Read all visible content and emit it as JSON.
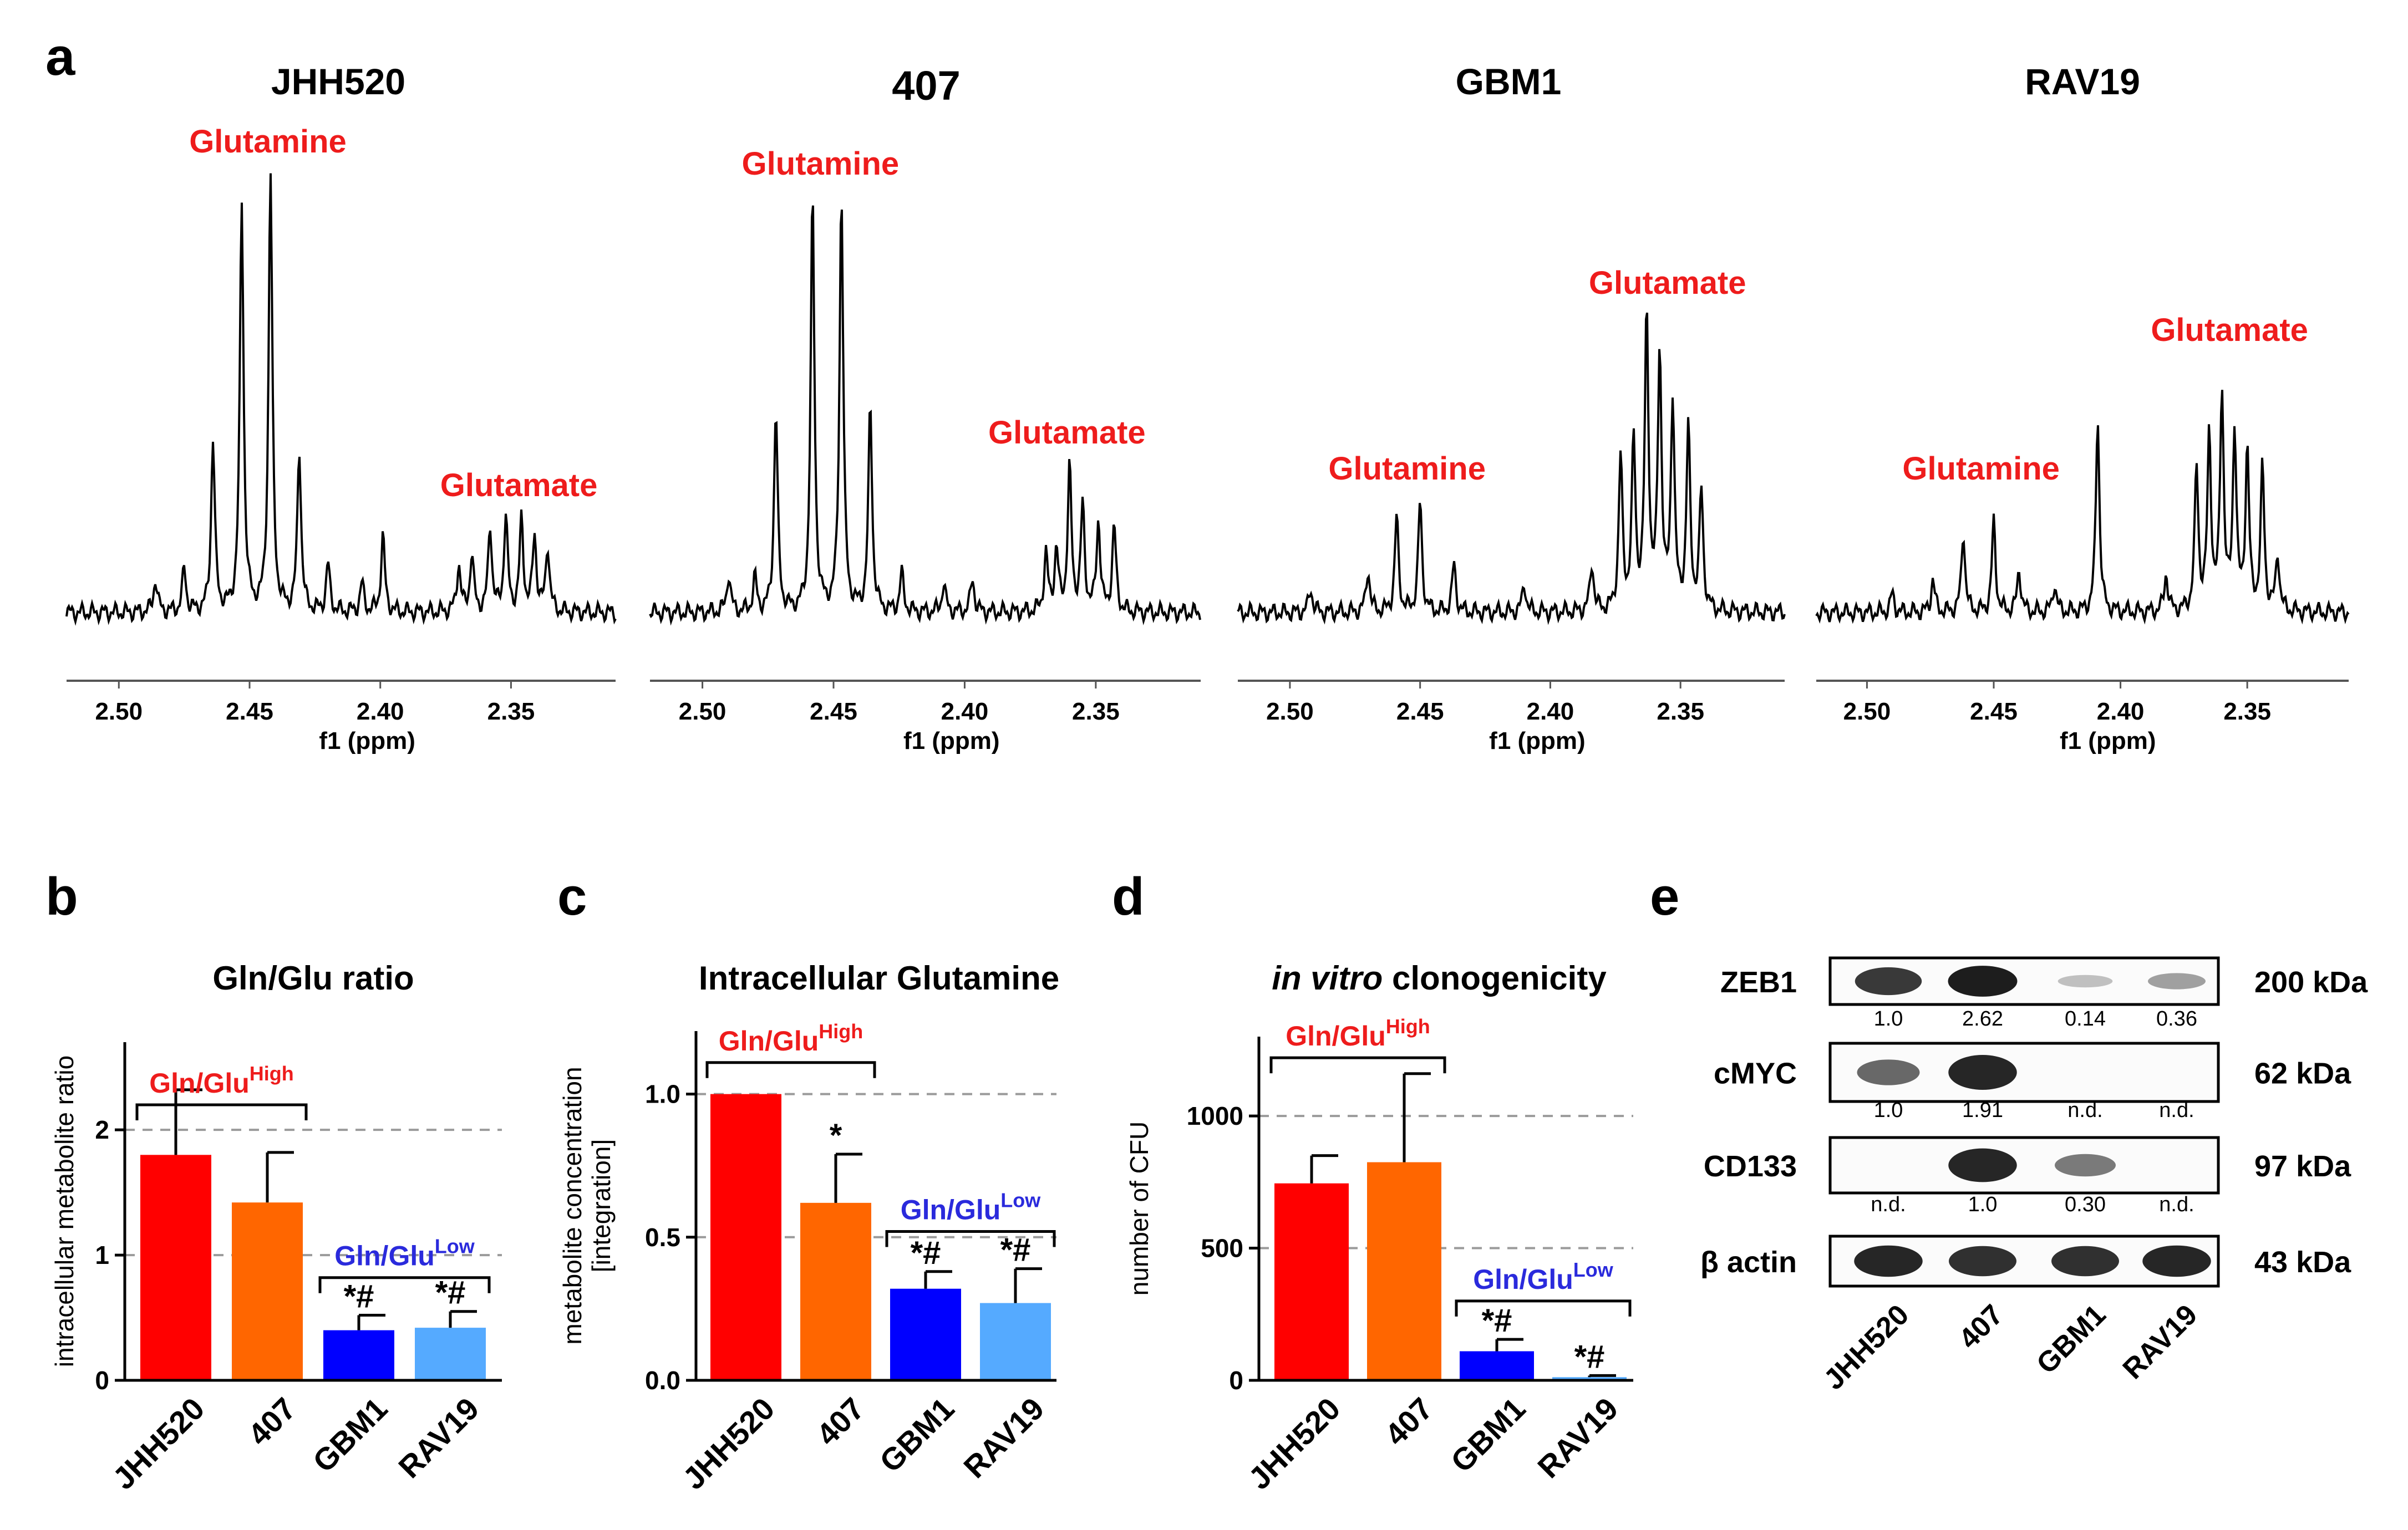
{
  "colors": {
    "red_label": "#ee1c1c",
    "blue_label": "#2a2adc",
    "bar_jhh520": "#ff0000",
    "bar_407": "#ff6600",
    "bar_gbm1": "#0000ff",
    "bar_rav19": "#55aaff",
    "ink": "#000000",
    "gridline": "#9a9a9a"
  },
  "panel_a": {
    "label": "a",
    "xlabel": "f1 (ppm)",
    "ticks": [
      "2.50",
      "2.45",
      "2.40",
      "2.35"
    ],
    "spectra": [
      {
        "cell_line": "JHH520",
        "labels": [
          {
            "text": "Glutamine",
            "ppm": 2.443
          },
          {
            "text": "Glutamate",
            "ppm": 2.347
          }
        ],
        "peaks": [
          {
            "ppm": 2.486,
            "h": 0.07
          },
          {
            "ppm": 2.475,
            "h": 0.09
          },
          {
            "ppm": 2.464,
            "h": 0.36
          },
          {
            "ppm": 2.453,
            "h": 0.86
          },
          {
            "ppm": 2.442,
            "h": 0.92
          },
          {
            "ppm": 2.431,
            "h": 0.34
          },
          {
            "ppm": 2.42,
            "h": 0.1
          },
          {
            "ppm": 2.407,
            "h": 0.06
          },
          {
            "ppm": 2.399,
            "h": 0.16
          },
          {
            "ppm": 2.37,
            "h": 0.1
          },
          {
            "ppm": 2.365,
            "h": 0.12
          },
          {
            "ppm": 2.358,
            "h": 0.18
          },
          {
            "ppm": 2.352,
            "h": 0.2
          },
          {
            "ppm": 2.346,
            "h": 0.19
          },
          {
            "ppm": 2.341,
            "h": 0.16
          },
          {
            "ppm": 2.336,
            "h": 0.14
          }
        ]
      },
      {
        "cell_line": "407",
        "labels": [
          {
            "text": "Glutamine",
            "ppm": 2.455
          },
          {
            "text": "Glutamate",
            "ppm": 2.361
          }
        ],
        "peaks": [
          {
            "ppm": 2.49,
            "h": 0.08
          },
          {
            "ppm": 2.48,
            "h": 0.07
          },
          {
            "ppm": 2.472,
            "h": 0.42
          },
          {
            "ppm": 2.458,
            "h": 0.87
          },
          {
            "ppm": 2.447,
            "h": 0.88
          },
          {
            "ppm": 2.436,
            "h": 0.43
          },
          {
            "ppm": 2.424,
            "h": 0.08
          },
          {
            "ppm": 2.408,
            "h": 0.06
          },
          {
            "ppm": 2.397,
            "h": 0.07
          },
          {
            "ppm": 2.369,
            "h": 0.12
          },
          {
            "ppm": 2.365,
            "h": 0.13
          },
          {
            "ppm": 2.36,
            "h": 0.3
          },
          {
            "ppm": 2.355,
            "h": 0.22
          },
          {
            "ppm": 2.349,
            "h": 0.19
          },
          {
            "ppm": 2.343,
            "h": 0.18
          }
        ]
      },
      {
        "cell_line": "GBM1",
        "labels": [
          {
            "text": "Glutamine",
            "ppm": 2.455
          },
          {
            "text": "Glutamate",
            "ppm": 2.355
          }
        ],
        "peaks": [
          {
            "ppm": 2.492,
            "h": 0.05
          },
          {
            "ppm": 2.47,
            "h": 0.09
          },
          {
            "ppm": 2.459,
            "h": 0.2
          },
          {
            "ppm": 2.45,
            "h": 0.23
          },
          {
            "ppm": 2.437,
            "h": 0.1
          },
          {
            "ppm": 2.41,
            "h": 0.06
          },
          {
            "ppm": 2.384,
            "h": 0.1
          },
          {
            "ppm": 2.373,
            "h": 0.32
          },
          {
            "ppm": 2.368,
            "h": 0.35
          },
          {
            "ppm": 2.363,
            "h": 0.62
          },
          {
            "ppm": 2.358,
            "h": 0.54
          },
          {
            "ppm": 2.353,
            "h": 0.44
          },
          {
            "ppm": 2.347,
            "h": 0.38
          },
          {
            "ppm": 2.342,
            "h": 0.25
          }
        ]
      },
      {
        "cell_line": "RAV19",
        "labels": [
          {
            "text": "Glutamine",
            "ppm": 2.455
          },
          {
            "text": "Glutamate",
            "ppm": 2.357
          }
        ],
        "peaks": [
          {
            "ppm": 2.49,
            "h": 0.04
          },
          {
            "ppm": 2.474,
            "h": 0.07
          },
          {
            "ppm": 2.462,
            "h": 0.17
          },
          {
            "ppm": 2.45,
            "h": 0.19
          },
          {
            "ppm": 2.44,
            "h": 0.09
          },
          {
            "ppm": 2.426,
            "h": 0.06
          },
          {
            "ppm": 2.409,
            "h": 0.41
          },
          {
            "ppm": 2.382,
            "h": 0.08
          },
          {
            "ppm": 2.37,
            "h": 0.3
          },
          {
            "ppm": 2.365,
            "h": 0.37
          },
          {
            "ppm": 2.36,
            "h": 0.46
          },
          {
            "ppm": 2.355,
            "h": 0.38
          },
          {
            "ppm": 2.35,
            "h": 0.34
          },
          {
            "ppm": 2.344,
            "h": 0.3
          },
          {
            "ppm": 2.338,
            "h": 0.12
          }
        ]
      }
    ]
  },
  "chart_data": [
    {
      "panel": "b",
      "type": "bar",
      "title": "Gln/Glu ratio",
      "ylabel": "intracellular metabolite ratio",
      "categories": [
        "JHH520",
        "407",
        "GBM1",
        "RAV19"
      ],
      "values": [
        1.8,
        1.42,
        0.4,
        0.42
      ],
      "errors": [
        0.52,
        0.4,
        0.12,
        0.13
      ],
      "significance": [
        "",
        "",
        "*#",
        "*#"
      ],
      "ylim": [
        0,
        2.7
      ],
      "yticks": [
        0,
        1,
        2
      ],
      "ytick_labels": [
        "0",
        "1",
        "2"
      ],
      "reference_lines": [
        1,
        2
      ],
      "group_high": {
        "text": "Gln/Glu",
        "sup": "High",
        "members": [
          0,
          1
        ],
        "y": 2.2
      },
      "group_low": {
        "text": "Gln/Glu",
        "sup": "Low",
        "members": [
          2,
          3
        ],
        "y": 0.82
      }
    },
    {
      "panel": "c",
      "type": "bar",
      "title": "Intracellular Glutamine",
      "ylabel_lines": [
        "metabolite concentration",
        "[integration]"
      ],
      "categories": [
        "JHH520",
        "407",
        "GBM1",
        "RAV19"
      ],
      "values": [
        1.0,
        0.62,
        0.32,
        0.27
      ],
      "errors": [
        0,
        0.17,
        0.06,
        0.12
      ],
      "significance": [
        "",
        "*",
        "*#",
        "*#"
      ],
      "ylim": [
        0,
        1.22
      ],
      "yticks": [
        0,
        0.5,
        1.0
      ],
      "ytick_labels": [
        "0.0",
        "0.5",
        "1.0"
      ],
      "reference_lines": [
        0.5,
        1.0
      ],
      "group_high": {
        "text": "Gln/Glu",
        "sup": "High",
        "members": [
          0,
          1
        ],
        "y": 1.11
      },
      "group_low": {
        "text": "Gln/Glu",
        "sup": "Low",
        "members": [
          2,
          3
        ],
        "y": 0.52
      }
    },
    {
      "panel": "d",
      "type": "bar",
      "title_italic": "in vitro",
      "title_rest": " clonogenicity",
      "ylabel": "number of CFU",
      "categories": [
        "JHH520",
        "407",
        "GBM1",
        "RAV19"
      ],
      "values": [
        745,
        825,
        110,
        12
      ],
      "errors": [
        105,
        335,
        45,
        6
      ],
      "significance": [
        "",
        "",
        "*#",
        "*#"
      ],
      "ylim": [
        0,
        1300
      ],
      "yticks": [
        0,
        500,
        1000
      ],
      "ytick_labels": [
        "0",
        "500",
        "1000"
      ],
      "reference_lines": [
        500,
        1000
      ],
      "group_high": {
        "text": "Gln/Glu",
        "sup": "High",
        "members": [
          0,
          1
        ],
        "y": 1220
      },
      "group_low": {
        "text": "Gln/Glu",
        "sup": "Low",
        "members": [
          2,
          3
        ],
        "y": 300
      }
    },
    {
      "panel": "e",
      "type": "western-blot",
      "lanes": [
        "JHH520",
        "407",
        "GBM1",
        "RAV19"
      ],
      "blots": [
        {
          "protein": "ZEB1",
          "size": "200 kDa",
          "quant": [
            "1.0",
            "2.62",
            "0.14",
            "0.36"
          ],
          "intensity": [
            0.85,
            1.0,
            0.12,
            0.3
          ]
        },
        {
          "protein": "cMYC",
          "size": "62 kDa",
          "quant": [
            "1.0",
            "1.91",
            "n.d.",
            "n.d."
          ],
          "intensity": [
            0.6,
            0.95,
            0.0,
            0.0
          ]
        },
        {
          "protein": "CD133",
          "size": "97 kDa",
          "quant": [
            "n.d.",
            "1.0",
            "0.30",
            "n.d."
          ],
          "intensity": [
            0.0,
            0.95,
            0.5,
            0.0
          ]
        },
        {
          "protein": "β actin",
          "size": "43 kDa",
          "quant": [],
          "intensity": [
            0.95,
            0.9,
            0.9,
            0.95
          ]
        }
      ]
    }
  ]
}
